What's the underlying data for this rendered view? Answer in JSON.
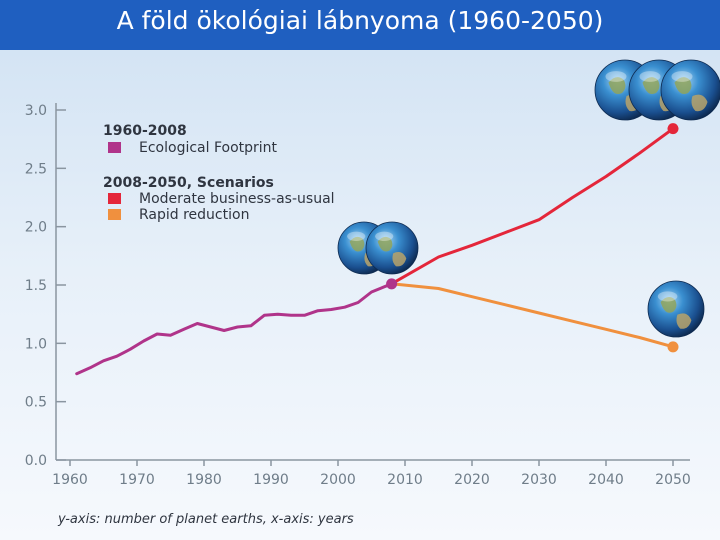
{
  "title": "A föld ökológiai lábnyoma (1960-2050)",
  "caption": "y-axis: number of planet earths, x-axis: years",
  "legend": {
    "group1_title": "1960-2008",
    "group1_items": [
      "Ecological Footprint"
    ],
    "group2_title": "2008-2050, Scenarios",
    "group2_items": [
      "Moderate business-as-usual",
      "Rapid reduction"
    ]
  },
  "colors": {
    "title_bar": "#1f5fc0",
    "footprint": "#b0348a",
    "business_as_usual": "#e4263a",
    "rapid_reduction": "#f0903e",
    "axis": "#8a95a0"
  },
  "icons": {
    "bau_endpoint": "earth-globe-icon x3",
    "split_point": "earth-globe-icon x2",
    "reduction_endpoint": "earth-globe-icon x1"
  },
  "chart_data": {
    "type": "line",
    "title": "A föld ökológiai lábnyoma (1960-2050)",
    "xlabel": "years",
    "ylabel": "number of planet earths",
    "xlim": [
      1960,
      2050
    ],
    "ylim": [
      0,
      3.0
    ],
    "x_ticks": [
      "1960",
      "1970",
      "1980",
      "1990",
      "2000",
      "2010",
      "2020",
      "2030",
      "2040",
      "2050"
    ],
    "y_ticks": [
      "0.0",
      "0.5",
      "1.0",
      "1.5",
      "2.0",
      "2.5",
      "3.0"
    ],
    "grid": false,
    "legend_position": "top-left",
    "series": [
      {
        "name": "Ecological Footprint",
        "x": [
          1961,
          1963,
          1965,
          1967,
          1969,
          1971,
          1973,
          1975,
          1977,
          1979,
          1981,
          1983,
          1985,
          1987,
          1989,
          1991,
          1993,
          1995,
          1997,
          1999,
          2001,
          2003,
          2005,
          2008
        ],
        "values": [
          0.74,
          0.79,
          0.85,
          0.89,
          0.95,
          1.02,
          1.08,
          1.07,
          1.12,
          1.17,
          1.14,
          1.11,
          1.14,
          1.15,
          1.24,
          1.25,
          1.24,
          1.24,
          1.28,
          1.29,
          1.31,
          1.35,
          1.44,
          1.51
        ]
      },
      {
        "name": "Moderate business-as-usual",
        "x": [
          2008,
          2015,
          2020,
          2025,
          2030,
          2035,
          2040,
          2045,
          2050
        ],
        "values": [
          1.51,
          1.74,
          1.84,
          1.95,
          2.06,
          2.25,
          2.43,
          2.63,
          2.84
        ]
      },
      {
        "name": "Rapid reduction",
        "x": [
          2008,
          2015,
          2020,
          2025,
          2030,
          2035,
          2040,
          2045,
          2050
        ],
        "values": [
          1.51,
          1.47,
          1.4,
          1.33,
          1.26,
          1.19,
          1.12,
          1.05,
          0.97
        ]
      }
    ],
    "markers": [
      {
        "x": 2008,
        "y": 1.51,
        "series": "Ecological Footprint"
      },
      {
        "x": 2050,
        "y": 2.84,
        "series": "Moderate business-as-usual"
      },
      {
        "x": 2050,
        "y": 0.97,
        "series": "Rapid reduction"
      }
    ]
  }
}
